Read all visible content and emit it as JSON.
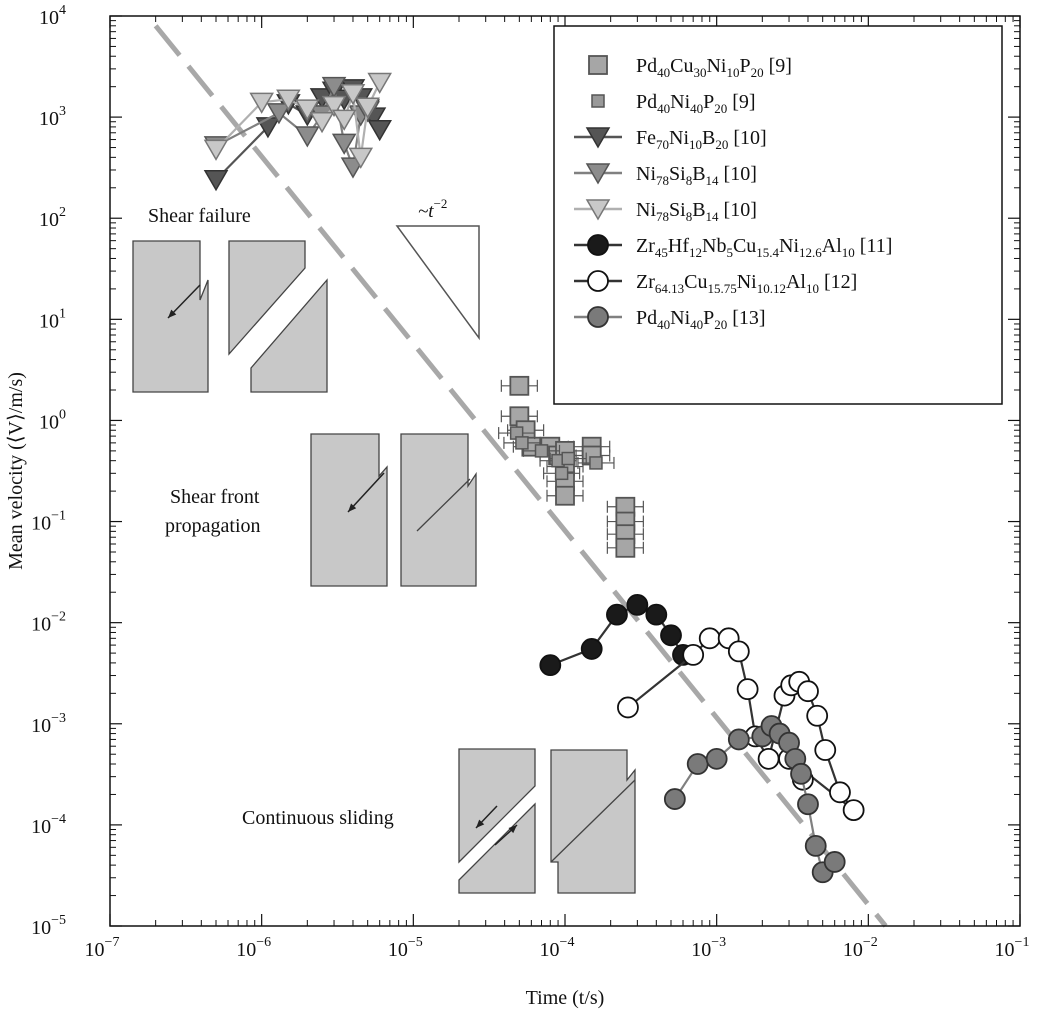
{
  "chart_data": {
    "type": "scatter",
    "xscale": "log",
    "yscale": "log",
    "xlim": [
      1e-07,
      0.1
    ],
    "ylim": [
      1e-05,
      10000.0
    ],
    "xlabel": "Time  (t/s)",
    "ylabel": "Mean velocity (⟨V⟩/m/s)",
    "x_ticks": [
      {
        "base": "10",
        "exp": "−7"
      },
      {
        "base": "10",
        "exp": "−6"
      },
      {
        "base": "10",
        "exp": "−5"
      },
      {
        "base": "10",
        "exp": "−4"
      },
      {
        "base": "10",
        "exp": "−3"
      },
      {
        "base": "10",
        "exp": "−2"
      },
      {
        "base": "10",
        "exp": "−1"
      }
    ],
    "y_ticks": [
      {
        "base": "10",
        "exp": "−5"
      },
      {
        "base": "10",
        "exp": "−4"
      },
      {
        "base": "10",
        "exp": "−3"
      },
      {
        "base": "10",
        "exp": "−2"
      },
      {
        "base": "10",
        "exp": "−1"
      },
      {
        "base": "10",
        "exp": "0"
      },
      {
        "base": "10",
        "exp": "1"
      },
      {
        "base": "10",
        "exp": "2"
      },
      {
        "base": "10",
        "exp": "3"
      },
      {
        "base": "10",
        "exp": "4"
      }
    ],
    "legend_placement": "top-right",
    "series": [
      {
        "legend": [
          [
            "Pd",
            ""
          ],
          [
            "40",
            "sub"
          ],
          [
            "Cu",
            ""
          ],
          [
            "30",
            "sub"
          ],
          [
            "Ni",
            ""
          ],
          [
            "10",
            "sub"
          ],
          [
            "P",
            ""
          ],
          [
            "20",
            "sub"
          ],
          [
            "  [9]",
            ""
          ]
        ],
        "marker": "square",
        "fill": "#a6a6a6",
        "stroke": "#555555",
        "line": false,
        "xerr": true,
        "points": [
          [
            5e-05,
            2.2
          ],
          [
            5e-05,
            1.1
          ],
          [
            5.5e-05,
            0.8
          ],
          [
            6e-05,
            0.55
          ],
          [
            8e-05,
            0.55
          ],
          [
            9e-05,
            0.45
          ],
          [
            0.0001,
            0.5
          ],
          [
            0.0001,
            0.35
          ],
          [
            0.0001,
            0.25
          ],
          [
            0.0001,
            0.18
          ],
          [
            0.00015,
            0.55
          ],
          [
            0.00015,
            0.45
          ],
          [
            0.00025,
            0.14
          ],
          [
            0.00025,
            0.1
          ],
          [
            0.00025,
            0.075
          ],
          [
            0.00025,
            0.055
          ]
        ]
      },
      {
        "legend": [
          [
            "Pd",
            ""
          ],
          [
            "40",
            "sub"
          ],
          [
            "Ni",
            ""
          ],
          [
            "40",
            "sub"
          ],
          [
            "P",
            ""
          ],
          [
            "20",
            "sub"
          ],
          [
            "  [9]",
            ""
          ]
        ],
        "marker": "square-small",
        "fill": "#999999",
        "stroke": "#555555",
        "line": false,
        "xerr": true,
        "points": [
          [
            4.8e-05,
            0.75
          ],
          [
            5.2e-05,
            0.6
          ],
          [
            7e-05,
            0.5
          ],
          [
            9e-05,
            0.4
          ],
          [
            9.5e-05,
            0.3
          ],
          [
            0.000105,
            0.42
          ],
          [
            0.00016,
            0.38
          ]
        ]
      },
      {
        "legend": [
          [
            "Fe",
            ""
          ],
          [
            "70",
            "sub"
          ],
          [
            "Ni",
            ""
          ],
          [
            "10",
            "sub"
          ],
          [
            "B",
            ""
          ],
          [
            "20",
            "sub"
          ],
          [
            "  [10]",
            ""
          ]
        ],
        "marker": "tri-down",
        "fill": "#555555",
        "stroke": "#333333",
        "line": true,
        "line_color": "#555555",
        "points": [
          [
            5e-07,
            240
          ],
          [
            1.1e-06,
            800
          ],
          [
            1.5e-06,
            1350
          ],
          [
            2e-06,
            1050
          ],
          [
            2.5e-06,
            1550
          ],
          [
            3e-06,
            1800
          ],
          [
            3.5e-06,
            1500
          ],
          [
            4e-06,
            1900
          ],
          [
            4.5e-06,
            1550
          ],
          [
            5e-06,
            1200
          ],
          [
            5.5e-06,
            1000
          ],
          [
            6e-06,
            750
          ]
        ]
      },
      {
        "legend": [
          [
            "Ni",
            ""
          ],
          [
            "78",
            "sub"
          ],
          [
            "Si",
            ""
          ],
          [
            "8",
            "sub"
          ],
          [
            "B",
            ""
          ],
          [
            "14",
            "sub"
          ],
          [
            "  [10]",
            ""
          ]
        ],
        "marker": "tri-down",
        "fill": "#8c8c8c",
        "stroke": "#555555",
        "line": true,
        "line_color": "#808080",
        "points": [
          [
            5e-07,
            520
          ],
          [
            1.3e-06,
            1100
          ],
          [
            2e-06,
            650
          ],
          [
            2.5e-06,
            1050
          ],
          [
            3e-06,
            2000
          ],
          [
            3.5e-06,
            550
          ],
          [
            4e-06,
            320
          ],
          [
            4.5e-06,
            1050
          ],
          [
            5e-06,
            1150
          ]
        ]
      },
      {
        "legend": [
          [
            "Ni",
            ""
          ],
          [
            "78",
            "sub"
          ],
          [
            "Si",
            ""
          ],
          [
            "8",
            "sub"
          ],
          [
            "B",
            ""
          ],
          [
            "14",
            "sub"
          ],
          [
            "  [10]",
            ""
          ]
        ],
        "marker": "tri-down",
        "fill": "#c8c8c8",
        "stroke": "#777777",
        "line": true,
        "line_color": "#b0b0b0",
        "points": [
          [
            5e-07,
            480
          ],
          [
            1e-06,
            1400
          ],
          [
            1.5e-06,
            1500
          ],
          [
            2e-06,
            1200
          ],
          [
            2.5e-06,
            900
          ],
          [
            3e-06,
            1300
          ],
          [
            3.5e-06,
            950
          ],
          [
            4e-06,
            1700
          ],
          [
            4.5e-06,
            400
          ],
          [
            5e-06,
            1250
          ],
          [
            6e-06,
            2200
          ]
        ]
      },
      {
        "legend": [
          [
            "Zr",
            ""
          ],
          [
            "45",
            "sub"
          ],
          [
            "Hf",
            ""
          ],
          [
            "12",
            "sub"
          ],
          [
            "Nb",
            ""
          ],
          [
            "5",
            "sub"
          ],
          [
            "Cu",
            ""
          ],
          [
            "15.4",
            "sub"
          ],
          [
            "Ni",
            ""
          ],
          [
            "12.6",
            "sub"
          ],
          [
            "Al",
            ""
          ],
          [
            "10",
            "sub"
          ],
          [
            "  [11]",
            ""
          ]
        ],
        "marker": "circle",
        "fill": "#1a1a1a",
        "stroke": "#111111",
        "line": true,
        "line_color": "#333333",
        "points": [
          [
            8e-05,
            0.0038
          ],
          [
            0.00015,
            0.0055
          ],
          [
            0.00022,
            0.012
          ],
          [
            0.0003,
            0.015
          ],
          [
            0.0004,
            0.012
          ],
          [
            0.0005,
            0.0075
          ],
          [
            0.0006,
            0.0048
          ]
        ]
      },
      {
        "legend": [
          [
            "Zr",
            ""
          ],
          [
            "64.13",
            "sub"
          ],
          [
            "Cu",
            ""
          ],
          [
            "15.75",
            "sub"
          ],
          [
            "Ni",
            ""
          ],
          [
            "10.12",
            "sub"
          ],
          [
            "Al",
            ""
          ],
          [
            "10",
            "sub"
          ],
          [
            "  [12]",
            ""
          ]
        ],
        "marker": "circle",
        "fill": "#ffffff",
        "stroke": "#111111",
        "line": true,
        "line_color": "#333333",
        "points": [
          [
            0.00026,
            0.00145
          ],
          [
            0.0007,
            0.0048
          ],
          [
            0.0009,
            0.007
          ],
          [
            0.0012,
            0.007
          ],
          [
            0.0014,
            0.0052
          ],
          [
            0.0016,
            0.0022
          ],
          [
            0.0018,
            0.00075
          ],
          [
            0.0022,
            0.00045
          ],
          [
            0.0028,
            0.0019
          ],
          [
            0.0031,
            0.0024
          ],
          [
            0.0035,
            0.0026
          ],
          [
            0.004,
            0.0021
          ],
          [
            0.0046,
            0.0012
          ],
          [
            0.0052,
            0.00055
          ],
          [
            0.0065,
            0.00021
          ],
          [
            0.008,
            0.00014
          ],
          [
            0.003,
            0.00045
          ],
          [
            0.0037,
            0.00028
          ]
        ]
      },
      {
        "legend": [
          [
            "Pd",
            ""
          ],
          [
            "40",
            "sub"
          ],
          [
            "Ni",
            ""
          ],
          [
            "40",
            "sub"
          ],
          [
            "P",
            ""
          ],
          [
            "20",
            "sub"
          ],
          [
            "  [13]",
            ""
          ]
        ],
        "marker": "circle",
        "fill": "#7a7a7a",
        "stroke": "#333333",
        "line": true,
        "line_color": "#808080",
        "points": [
          [
            0.00053,
            0.00018
          ],
          [
            0.00075,
            0.0004
          ],
          [
            0.001,
            0.00045
          ],
          [
            0.0014,
            0.0007
          ],
          [
            0.002,
            0.00075
          ],
          [
            0.0023,
            0.00095
          ],
          [
            0.0026,
            0.0008
          ],
          [
            0.003,
            0.00065
          ],
          [
            0.0033,
            0.00045
          ],
          [
            0.0036,
            0.00032
          ],
          [
            0.004,
            0.00016
          ],
          [
            0.0045,
            6.2e-05
          ],
          [
            0.005,
            3.4e-05
          ],
          [
            0.006,
            4.3e-05
          ]
        ]
      }
    ],
    "trend_line": {
      "label": "~t−2",
      "slope": -2,
      "from": [
        2e-07,
        8000
      ],
      "to": [
        0.013,
        1e-05
      ],
      "color": "#a8a8a8"
    },
    "annotations": {
      "shear_failure": "Shear failure",
      "shear_front_1": "Shear front",
      "shear_front_2": "propagation",
      "continuous_sliding": "Continuous sliding",
      "slope_base": "~t",
      "slope_exp": "−2"
    }
  }
}
